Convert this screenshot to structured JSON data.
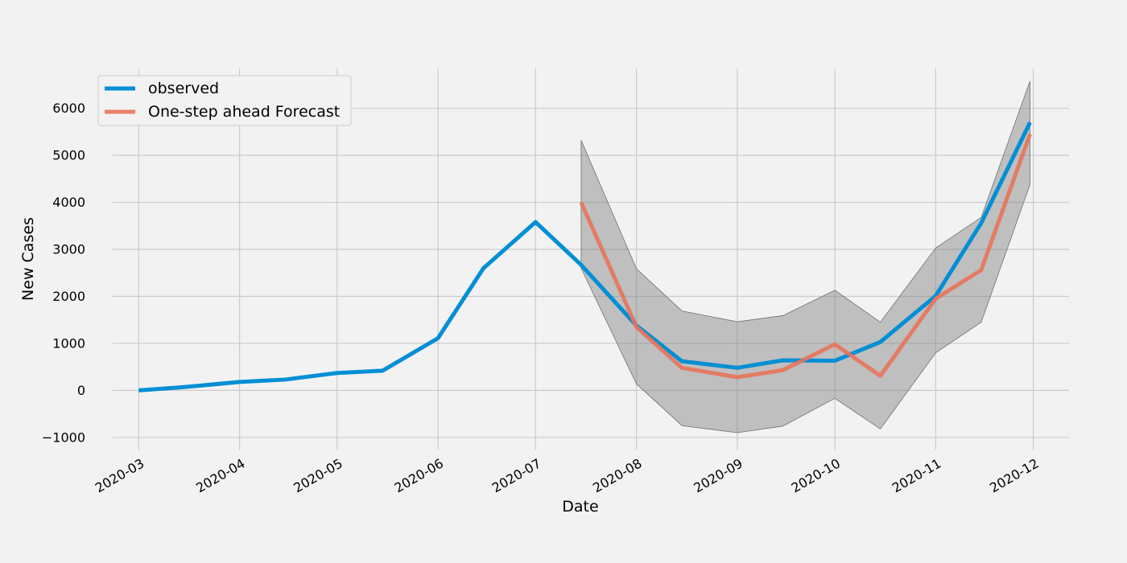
{
  "chart_data": {
    "type": "line",
    "xlabel": "Date",
    "ylabel": "New Cases",
    "x_tick_labels": [
      "2020-03",
      "2020-04",
      "2020-05",
      "2020-06",
      "2020-07",
      "2020-08",
      "2020-09",
      "2020-10",
      "2020-11",
      "2020-12"
    ],
    "y_ticks": [
      -1000,
      0,
      1000,
      2000,
      3000,
      4000,
      5000,
      6000
    ],
    "y_tick_labels": [
      "−1000",
      "0",
      "1000",
      "2000",
      "3000",
      "4000",
      "5000",
      "6000"
    ],
    "xlim": [
      "2020-02-22",
      "2020-12-12"
    ],
    "ylim": [
      -1020,
      6850
    ],
    "grid": true,
    "legend_position": "upper-left",
    "series": [
      {
        "name": "observed",
        "color": "#008fd5",
        "points": [
          [
            "2020-03-01",
            0
          ],
          [
            "2020-03-15",
            70
          ],
          [
            "2020-04-01",
            180
          ],
          [
            "2020-04-15",
            230
          ],
          [
            "2020-05-01",
            370
          ],
          [
            "2020-05-15",
            420
          ],
          [
            "2020-06-01",
            1110
          ],
          [
            "2020-06-15",
            2600
          ],
          [
            "2020-07-01",
            3580
          ],
          [
            "2020-07-15",
            2670
          ],
          [
            "2020-08-01",
            1380
          ],
          [
            "2020-08-15",
            620
          ],
          [
            "2020-09-01",
            480
          ],
          [
            "2020-09-15",
            640
          ],
          [
            "2020-10-01",
            630
          ],
          [
            "2020-10-15",
            1030
          ],
          [
            "2020-11-01",
            2010
          ],
          [
            "2020-11-15",
            3560
          ],
          [
            "2020-11-30",
            5700
          ]
        ]
      },
      {
        "name": "One-step ahead Forecast",
        "color": "#e8735a",
        "points": [
          [
            "2020-07-15",
            4000
          ],
          [
            "2020-08-01",
            1350
          ],
          [
            "2020-08-15",
            480
          ],
          [
            "2020-09-01",
            280
          ],
          [
            "2020-09-15",
            430
          ],
          [
            "2020-10-01",
            980
          ],
          [
            "2020-10-15",
            310
          ],
          [
            "2020-11-01",
            1950
          ],
          [
            "2020-11-15",
            2560
          ],
          [
            "2020-11-30",
            5450
          ]
        ]
      }
    ],
    "confidence_band": {
      "color": "#808080",
      "points": [
        [
          "2020-07-15",
          2600,
          5320
        ],
        [
          "2020-08-01",
          140,
          2590
        ],
        [
          "2020-08-15",
          -750,
          1690
        ],
        [
          "2020-09-01",
          -900,
          1460
        ],
        [
          "2020-09-15",
          -760,
          1590
        ],
        [
          "2020-10-01",
          -170,
          2130
        ],
        [
          "2020-10-15",
          -820,
          1450
        ],
        [
          "2020-11-01",
          800,
          3030
        ],
        [
          "2020-11-15",
          1450,
          3680
        ],
        [
          "2020-11-30",
          4380,
          6580
        ]
      ]
    }
  }
}
